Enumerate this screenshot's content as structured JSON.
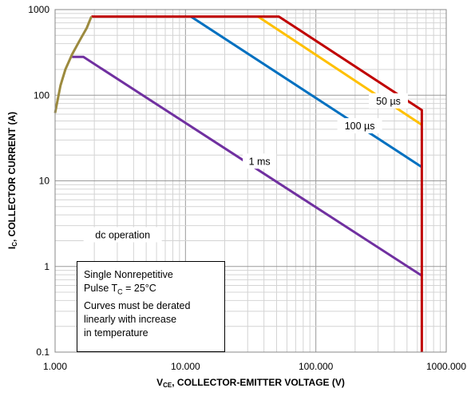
{
  "chart_data": {
    "type": "line",
    "x_scale": "log",
    "y_scale": "log",
    "xlim": [
      1,
      1000
    ],
    "ylim": [
      0.1,
      1000
    ],
    "grid": true,
    "legend": "none",
    "xlabel": {
      "main": "V",
      "sub": "CE",
      "rest": ", COLLECTOR-EMITTER VOLTAGE (V)"
    },
    "ylabel": {
      "main": "I",
      "sub": "C",
      "rest": ", COLLECTOR CURRENT (A)"
    },
    "x_ticks": [
      {
        "value": 1,
        "label": "1.000"
      },
      {
        "value": 10,
        "label": "10.000"
      },
      {
        "value": 100,
        "label": "100.000"
      },
      {
        "value": 1000,
        "label": "1000.000"
      }
    ],
    "y_ticks": [
      {
        "value": 0.1,
        "label": "0.1"
      },
      {
        "value": 1,
        "label": "1"
      },
      {
        "value": 10,
        "label": "10"
      },
      {
        "value": 100,
        "label": "100"
      },
      {
        "value": 1000,
        "label": "1000"
      }
    ],
    "series": [
      {
        "label": "dc operation",
        "color": "#7030a0",
        "points": [
          [
            1.35,
            280
          ],
          [
            1.65,
            280
          ],
          [
            650,
            0.78
          ]
        ]
      },
      {
        "label": "1 ms",
        "color": "#0070c0",
        "points": [
          [
            11,
            830
          ],
          [
            650,
            14.5
          ]
        ]
      },
      {
        "label": "100 µs",
        "color": "#ffc000",
        "points": [
          [
            36,
            830
          ],
          [
            650,
            45
          ]
        ]
      },
      {
        "label": "50 µs",
        "color": "#c00000",
        "points": [
          [
            1.9,
            830
          ],
          [
            52,
            830
          ],
          [
            650,
            67
          ],
          [
            650,
            0.1
          ]
        ]
      },
      {
        "label": "",
        "color": "#9c8a3e",
        "points": [
          [
            1,
            62
          ],
          [
            1.1,
            130
          ],
          [
            1.2,
            200
          ],
          [
            1.35,
            300
          ],
          [
            1.55,
            440
          ],
          [
            1.75,
            610
          ],
          [
            1.9,
            830
          ]
        ]
      }
    ],
    "annotations": [
      {
        "id": "dc",
        "text": "dc operation",
        "at": [
          3.3,
          2.35
        ]
      },
      {
        "id": "1ms",
        "text": "1 ms",
        "at": [
          37,
          17
        ]
      },
      {
        "id": "100us",
        "text": "100 µs",
        "at": [
          217,
          44
        ]
      },
      {
        "id": "50us",
        "text": "50 µs",
        "at": [
          360,
          86
        ]
      }
    ]
  },
  "note_box": {
    "line1": "Single Nonrepetitive",
    "line2_pre": "Pulse T",
    "line2_sub": "C",
    "line2_post": " = 25°C",
    "line3": "Curves must be derated",
    "line4": "linearly with increase",
    "line5": "in temperature"
  }
}
